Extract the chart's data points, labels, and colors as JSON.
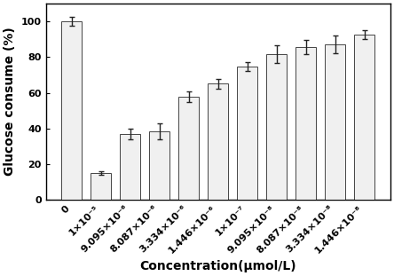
{
  "categories": [
    "0",
    "1×10$^{-5}$",
    "9.095×10$^{-6}$",
    "8.087×10$^{-6}$",
    "3.334×10$^{-6}$",
    "1.446×10$^{-6}$",
    "1×10$^{-7}$",
    "9.095×10$^{-8}$",
    "8.087×10$^{-8}$",
    "3.334×10$^{-8}$",
    "1.446×10$^{-8}$"
  ],
  "cat_plain": [
    "0",
    "1×10⁻⁵",
    "9.095×10⁻⁶",
    "8.087×10⁻⁶",
    "3.334×10⁻⁶",
    "1.446×10⁻⁶",
    "1×10⁻⁷",
    "9.095×10⁻⁸",
    "8.087×10⁻⁸",
    "3.334×10⁻⁸",
    "1.446×10⁻⁸"
  ],
  "values": [
    100,
    15,
    37,
    38.5,
    58,
    65,
    74.5,
    81.5,
    85.5,
    87,
    92.5
  ],
  "errors": [
    2.5,
    1.0,
    3.0,
    4.5,
    3.0,
    2.5,
    2.5,
    5.0,
    4.0,
    5.0,
    2.5
  ],
  "bar_color": "#f0f0f0",
  "bar_edge_color": "#444444",
  "bar_width": 0.7,
  "ylabel": "Glucose consume (%)",
  "xlabel": "Concentration(μmol/L)",
  "ylim": [
    0,
    110
  ],
  "yticks": [
    0,
    20,
    40,
    60,
    80,
    100
  ],
  "label_fontsize": 10,
  "tick_fontsize": 8,
  "xlabel_fontsize": 10,
  "background_color": "#ffffff",
  "error_color": "#222222",
  "error_capsize": 2.5,
  "error_linewidth": 1.0
}
